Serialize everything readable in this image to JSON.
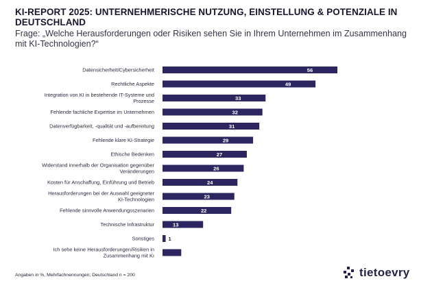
{
  "header": {
    "title": "KI-REPORT 2025: UNTERNEHMERISCHE NUTZUNG, EINSTELLUNG & POTENZIALE IN DEUTSCHLAND",
    "question": "Frage: „Welche Herausforderungen oder Risiken sehen Sie in Ihrem Unternehmen im Zusammenhang mit KI-Technologien?“"
  },
  "chart_data": {
    "type": "bar",
    "orientation": "horizontal",
    "title": "Welche Herausforderungen oder Risiken sehen Sie in Ihrem Unternehmen im Zusammenhang mit KI-Technologien?",
    "xlabel": "",
    "ylabel": "",
    "unit": "%",
    "xlim": [
      0,
      56
    ],
    "bar_color": "#2b2660",
    "categories": [
      [
        "Datensicherheit/Cybersicherheit"
      ],
      [
        "Rechtliche Aspekte"
      ],
      [
        "Integration von KI in bestehende IT-Systeme und",
        "Prozesse"
      ],
      [
        "Fehlende fachliche Expertise im Unternehmen"
      ],
      [
        "Datenverfügbarkeit, -qualität und -aufbereitung"
      ],
      [
        "Fehlende klare KI-Strategie"
      ],
      [
        "Ethische Bedenken"
      ],
      [
        "Widerstand innerhalb der Organisation gegenüber",
        "Veränderungen"
      ],
      [
        "Kosten für Anschaffung, Einführung und Betrieb"
      ],
      [
        "Herausforderungen bei der Auswahl geeigneter",
        "KI-Technologien"
      ],
      [
        "Fehlende sinnvolle Anwendungsszenarien"
      ],
      [
        "Technische Infrastruktur"
      ],
      [
        "Sonstiges"
      ],
      [
        "Ich sehe keine Herausforderungen/Risiken in",
        "Zusammenhang mit KI"
      ]
    ],
    "values": [
      56,
      49,
      33,
      32,
      31,
      29,
      27,
      26,
      24,
      23,
      22,
      13,
      1,
      6
    ]
  },
  "footer": {
    "note": "Angaben in %, Mehrfachnennungen; Deutschland n = 200",
    "brand": "tietoevry",
    "brand_icon": "pixel-dots-icon"
  }
}
